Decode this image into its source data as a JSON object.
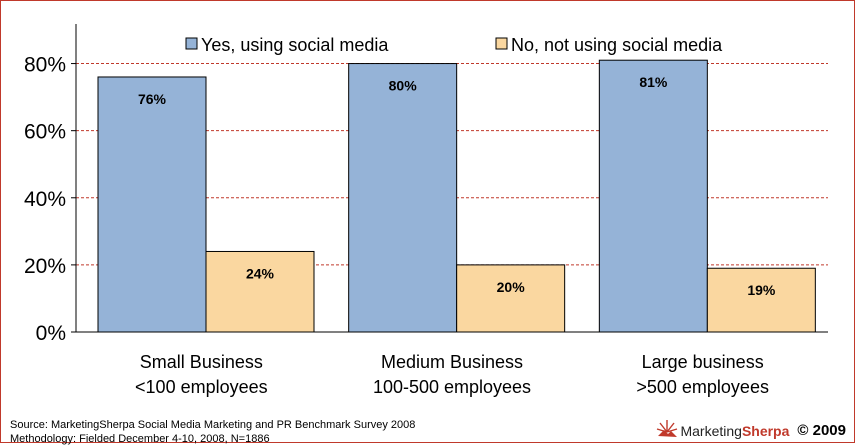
{
  "chart_data": {
    "type": "bar",
    "categories": [
      [
        "Small Business",
        "<100 employees"
      ],
      [
        "Medium Business",
        "100-500 employees"
      ],
      [
        "Large business",
        ">500 employees"
      ]
    ],
    "series": [
      {
        "name": "Yes, using social media",
        "values": [
          76,
          80,
          81
        ],
        "labels": [
          "76%",
          "80%",
          "81%"
        ],
        "color": "#95b3d7"
      },
      {
        "name": "No, not using social media",
        "values": [
          24,
          20,
          19
        ],
        "labels": [
          "24%",
          "20%",
          "19%"
        ],
        "color": "#fad7a0"
      }
    ],
    "ylim": [
      0,
      90
    ],
    "yticks": [
      0,
      20,
      40,
      60,
      80
    ],
    "ytick_labels": [
      "0%",
      "20%",
      "40%",
      "60%",
      "80%"
    ],
    "grid": true,
    "legend_position": "top"
  },
  "footer": {
    "source": "Source: MarketingSherpa Social Media Marketing and PR Benchmark Survey 2008",
    "methodology": "Methodology: Fielded December 4-10, 2008, N=1886"
  },
  "brand": {
    "name_part1": "Marketing",
    "name_part2": "Sherpa",
    "copyright": "© 2009",
    "logo_icon": "sunburst-icon"
  },
  "colors": {
    "grid": "#c0392b",
    "axis": "#000000",
    "border": "#c0392b"
  }
}
